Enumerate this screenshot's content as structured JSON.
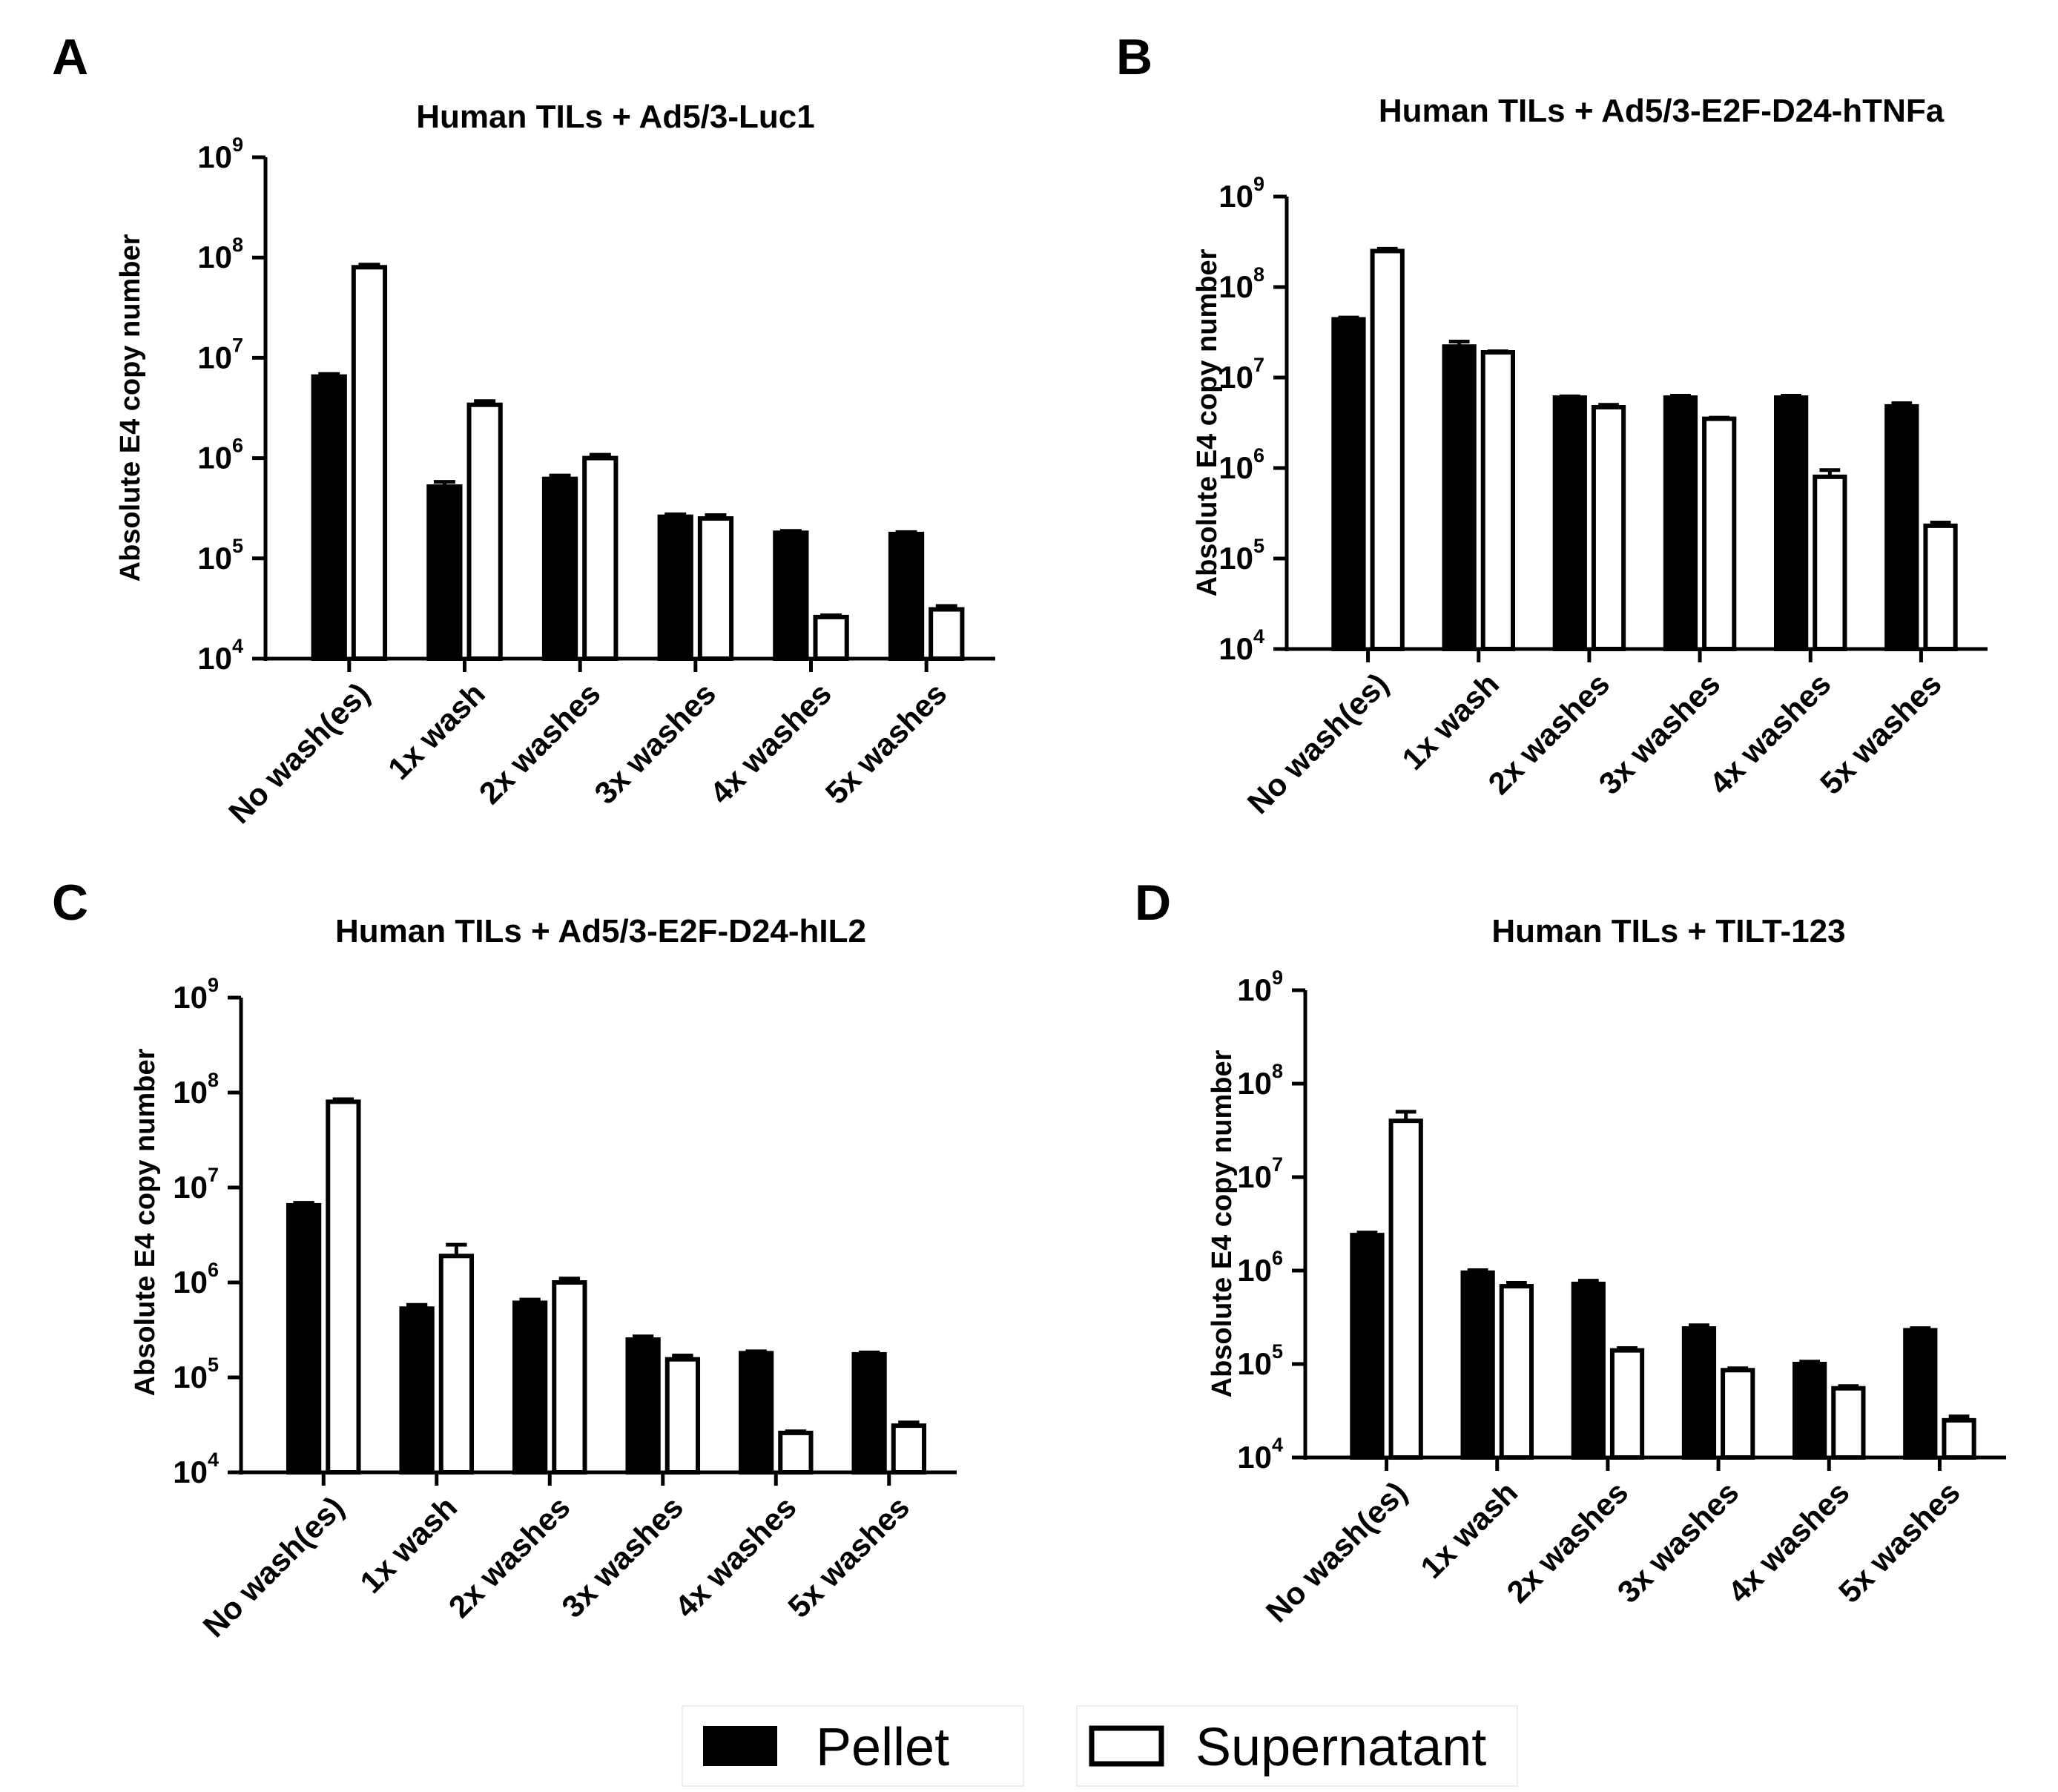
{
  "figure": {
    "y_scale": "log10",
    "legend": {
      "items": [
        {
          "label": "Pellet",
          "fill": "#000000"
        },
        {
          "label": "Supernatant",
          "fill": "#ffffff"
        }
      ],
      "position": "bottom-center"
    }
  },
  "chart_data": [
    {
      "panel": "A",
      "type": "bar",
      "title": "Human TILs + Ad5/3-Luc1",
      "ylabel": "Absolute E4 copy number",
      "xlabel": "",
      "ylim": [
        10000,
        1000000000
      ],
      "yticks": [
        {
          "base": "10",
          "exp": "9"
        },
        {
          "base": "10",
          "exp": "8"
        },
        {
          "base": "10",
          "exp": "7"
        },
        {
          "base": "10",
          "exp": "6"
        },
        {
          "base": "10",
          "exp": "5"
        },
        {
          "base": "10",
          "exp": "4"
        }
      ],
      "categories": [
        "No wash(es)",
        "1x wash",
        "2x washes",
        "3x washes",
        "4x washes",
        "5x washes"
      ],
      "series": [
        {
          "name": "Pellet",
          "values": [
            6500000,
            520000,
            620000,
            260000,
            180000,
            175000
          ],
          "errors": [
            400000,
            60000,
            50000,
            15000,
            8000,
            8000
          ]
        },
        {
          "name": "Supernatant",
          "values": [
            80000000,
            3400000,
            1000000,
            250000,
            26000,
            31000
          ],
          "errors": [
            5000000,
            300000,
            80000,
            20000,
            1000,
            2500
          ]
        }
      ]
    },
    {
      "panel": "B",
      "type": "bar",
      "title": "Human TILs + Ad5/3-E2F-D24-hTNFa",
      "ylabel": "Absolute E4 copy number",
      "xlabel": "",
      "ylim": [
        10000,
        1000000000
      ],
      "yticks": [
        {
          "base": "10",
          "exp": "9"
        },
        {
          "base": "10",
          "exp": "8"
        },
        {
          "base": "10",
          "exp": "7"
        },
        {
          "base": "10",
          "exp": "6"
        },
        {
          "base": "10",
          "exp": "5"
        },
        {
          "base": "10",
          "exp": "4"
        }
      ],
      "categories": [
        "No wash(es)",
        "1x wash",
        "2x washes",
        "3x washes",
        "4x washes",
        "5x washes"
      ],
      "series": [
        {
          "name": "Pellet",
          "values": [
            44000000,
            22000000,
            6000000,
            6000000,
            6000000,
            4800000
          ],
          "errors": [
            2000000,
            3000000,
            200000,
            300000,
            300000,
            400000
          ]
        },
        {
          "name": "Supernatant",
          "values": [
            250000000,
            19000000,
            4700000,
            3500000,
            800000,
            230000
          ],
          "errors": [
            15000000,
            500000,
            300000,
            100000,
            150000,
            20000
          ]
        }
      ]
    },
    {
      "panel": "C",
      "type": "bar",
      "title": "Human TILs + Ad5/3-E2F-D24-hIL2",
      "ylabel": "Absolute E4 copy number",
      "xlabel": "",
      "ylim": [
        10000,
        1000000000
      ],
      "yticks": [
        {
          "base": "10",
          "exp": "9"
        },
        {
          "base": "10",
          "exp": "8"
        },
        {
          "base": "10",
          "exp": "7"
        },
        {
          "base": "10",
          "exp": "6"
        },
        {
          "base": "10",
          "exp": "5"
        },
        {
          "base": "10",
          "exp": "4"
        }
      ],
      "categories": [
        "No wash(es)",
        "1x wash",
        "2x washes",
        "3x washes",
        "4x washes",
        "5x washes"
      ],
      "series": [
        {
          "name": "Pellet",
          "values": [
            6500000,
            530000,
            610000,
            250000,
            180000,
            175000
          ],
          "errors": [
            400000,
            50000,
            50000,
            20000,
            8000,
            8000
          ]
        },
        {
          "name": "Supernatant",
          "values": [
            80000000,
            1900000,
            1000000,
            155000,
            26000,
            31000
          ],
          "errors": [
            5000000,
            600000,
            100000,
            15000,
            1000,
            2500
          ]
        }
      ]
    },
    {
      "panel": "D",
      "type": "bar",
      "title": "Human TILs + TILT-123",
      "ylabel": "Absolute E4 copy number",
      "xlabel": "",
      "ylim": [
        10000,
        1000000000
      ],
      "yticks": [
        {
          "base": "10",
          "exp": "9"
        },
        {
          "base": "10",
          "exp": "8"
        },
        {
          "base": "10",
          "exp": "7"
        },
        {
          "base": "10",
          "exp": "6"
        },
        {
          "base": "10",
          "exp": "5"
        },
        {
          "base": "10",
          "exp": "4"
        }
      ],
      "categories": [
        "No wash(es)",
        "1x wash",
        "2x washes",
        "3x washes",
        "4x washes",
        "5x washes"
      ],
      "series": [
        {
          "name": "Pellet",
          "values": [
            2400000,
            950000,
            720000,
            240000,
            100000,
            230000
          ],
          "errors": [
            150000,
            60000,
            60000,
            20000,
            6000,
            12000
          ]
        },
        {
          "name": "Supernatant",
          "values": [
            40000000,
            680000,
            140000,
            86000,
            55000,
            25000
          ],
          "errors": [
            10000000,
            60000,
            8000,
            4000,
            3000,
            2500
          ]
        }
      ]
    }
  ]
}
